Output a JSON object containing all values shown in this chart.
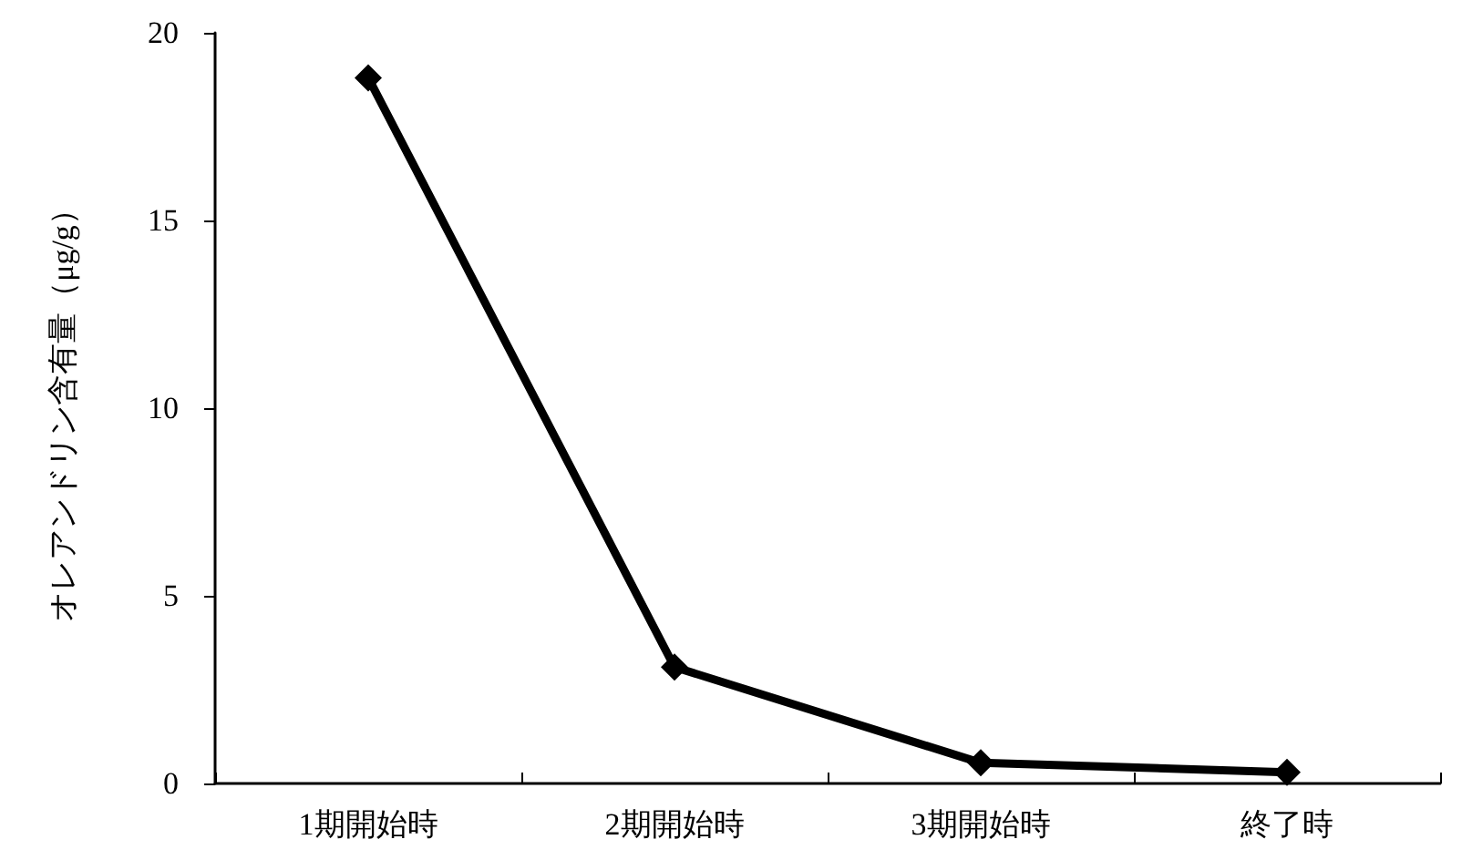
{
  "chart_data": {
    "type": "line",
    "ylabel": "オレアンドリン含有量（μg/g）",
    "categories": [
      "1期開始時",
      "2期開始時",
      "3期開始時",
      "終了時"
    ],
    "series": [
      {
        "color": "#000000",
        "values": [
          18.8,
          3.1,
          0.55,
          0.3
        ]
      }
    ],
    "ylim": [
      0,
      20
    ],
    "yticks": [
      0,
      5,
      10,
      15,
      20
    ],
    "grid": false,
    "marker": "diamond",
    "line_style": "solid"
  }
}
